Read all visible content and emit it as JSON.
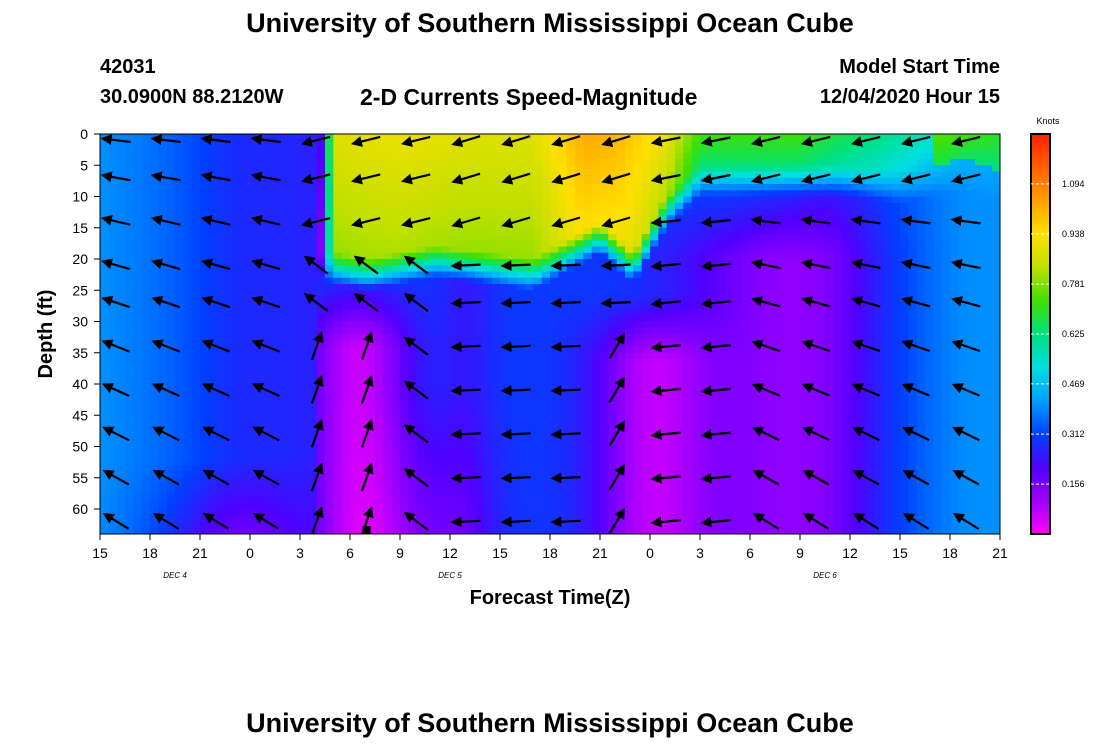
{
  "header": {
    "title": "University of Southern Mississippi Ocean Cube",
    "station_id": "42031",
    "coords": "30.0900N 88.2120W",
    "chart_title": "2-D Currents Speed-Magnitude",
    "model_start_label": "Model Start Time",
    "model_start_value": "12/04/2020 Hour 15"
  },
  "footer": {
    "title": "University of Southern Mississippi Ocean Cube"
  },
  "chart_data": {
    "type": "heatmap",
    "title": "2-D Currents Speed-Magnitude",
    "xlabel": "Forecast Time(Z)",
    "ylabel": "Depth (ft)",
    "x_range_hours": [
      0,
      54
    ],
    "x_tick_labels": [
      "15",
      "18",
      "21",
      "0",
      "3",
      "6",
      "9",
      "12",
      "15",
      "18",
      "21",
      "0",
      "3",
      "6",
      "9",
      "12",
      "15",
      "18",
      "21"
    ],
    "date_labels": [
      {
        "label": "DEC 4",
        "hour": 4.5
      },
      {
        "label": "DEC 5",
        "hour": 21
      },
      {
        "label": "DEC 6",
        "hour": 43.5
      }
    ],
    "y_range_ft": [
      0,
      64
    ],
    "y_ticks": [
      0,
      5,
      10,
      15,
      20,
      25,
      30,
      35,
      40,
      45,
      50,
      55,
      60
    ],
    "colorbar": {
      "unit": "Knots",
      "range": [
        0,
        1.25
      ],
      "tick_values": [
        0.156,
        0.312,
        0.469,
        0.625,
        0.781,
        0.938,
        1.094
      ],
      "tick_labels": [
        "0.156",
        "0.312",
        "0.469",
        "0.625",
        "0.781",
        "0.938",
        "1.094"
      ],
      "colors": [
        "#ff00ff",
        "#a000ff",
        "#5000ff",
        "#0040ff",
        "#00a0ff",
        "#00e0e0",
        "#00e080",
        "#40e000",
        "#c0e000",
        "#ffe000",
        "#ffa000",
        "#ff6000",
        "#ff2000"
      ]
    },
    "arrow_hours": [
      1,
      4,
      7,
      10,
      13,
      16,
      19,
      22,
      25,
      28,
      31,
      34,
      37,
      40,
      43,
      46,
      49,
      52
    ],
    "arrow_depths_ft": [
      1,
      7,
      14,
      21,
      27,
      34,
      41,
      48,
      55,
      62
    ]
  }
}
